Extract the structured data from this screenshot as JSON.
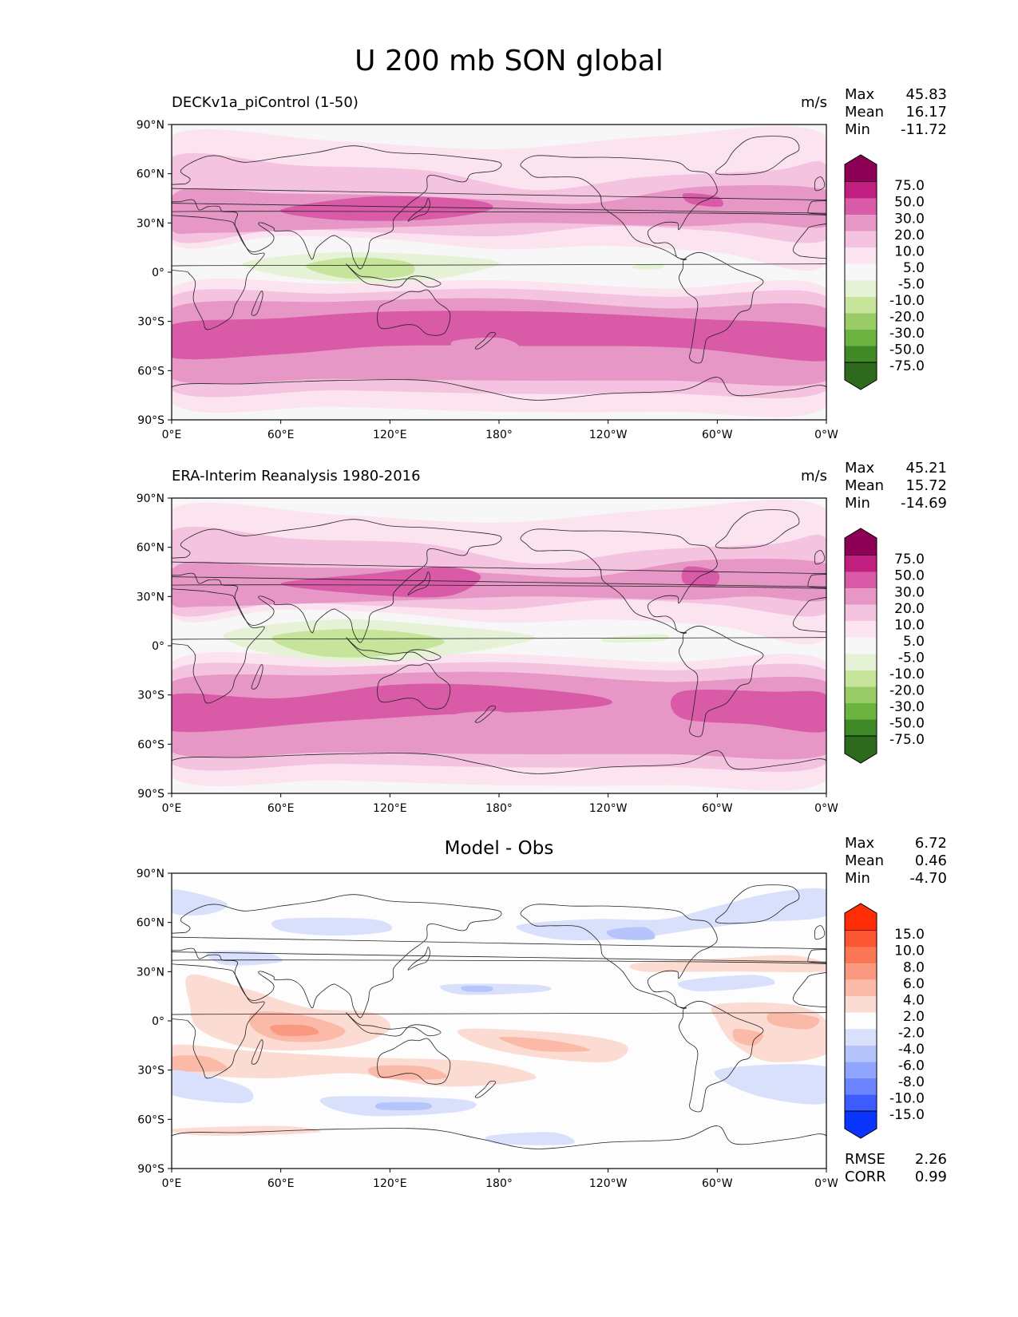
{
  "figure_title": "U 200 mb SON global",
  "axes": {
    "lat_ticks": [
      "90°N",
      "60°N",
      "30°N",
      "0°",
      "30°S",
      "60°S",
      "90°S"
    ],
    "lon_ticks": [
      "0°E",
      "60°E",
      "120°E",
      "180°",
      "120°W",
      "60°W",
      "0°W"
    ]
  },
  "colors": {
    "zonal_wind_levels": [
      "#2d6a1e",
      "#3f8a26",
      "#6db33f",
      "#99cc66",
      "#c6e59a",
      "#e6f2d6",
      "#f7f7f7",
      "#fbe3f0",
      "#f4c3df",
      "#e797c6",
      "#d95aa6",
      "#c01f80",
      "#8c0055"
    ],
    "difference_levels": [
      "#0a35ff",
      "#3c5cff",
      "#6a85ff",
      "#8fa5ff",
      "#b5c4fb",
      "#d8e0fb",
      "#fdfdfd",
      "#fcdcd2",
      "#fbb9a7",
      "#fa9980",
      "#fb7755",
      "#fb5532",
      "#ff2c06"
    ]
  },
  "chart_data": [
    {
      "type": "heatmap",
      "title": "DECKv1a_piControl (1-50)",
      "units": "m/s",
      "stats": {
        "max_label": "Max",
        "max": "45.83",
        "mean_label": "Mean",
        "mean": "16.17",
        "min_label": "Min",
        "min": "-11.72"
      },
      "colorbar_labels": [
        "75.0",
        "50.0",
        "30.0",
        "20.0",
        "10.0",
        "5.0",
        "-5.0",
        "-10.0",
        "-20.0",
        "-30.0",
        "-50.0",
        "-75.0"
      ],
      "lat_range": [
        -90,
        90
      ],
      "lon_range": [
        0,
        360
      ],
      "grid": false
    },
    {
      "type": "heatmap",
      "title": "ERA-Interim Reanalysis 1980-2016",
      "units": "m/s",
      "stats": {
        "max_label": "Max",
        "max": "45.21",
        "mean_label": "Mean",
        "mean": "15.72",
        "min_label": "Min",
        "min": "-14.69"
      },
      "colorbar_labels": [
        "75.0",
        "50.0",
        "30.0",
        "20.0",
        "10.0",
        "5.0",
        "-5.0",
        "-10.0",
        "-20.0",
        "-30.0",
        "-50.0",
        "-75.0"
      ],
      "lat_range": [
        -90,
        90
      ],
      "lon_range": [
        0,
        360
      ],
      "grid": false
    },
    {
      "type": "heatmap",
      "title": "Model - Obs",
      "units": "",
      "stats": {
        "max_label": "Max",
        "max": "6.72",
        "mean_label": "Mean",
        "mean": "0.46",
        "min_label": "Min",
        "min": "-4.70"
      },
      "colorbar_labels": [
        "15.0",
        "10.0",
        "8.0",
        "6.0",
        "4.0",
        "2.0",
        "-2.0",
        "-4.0",
        "-6.0",
        "-8.0",
        "-10.0",
        "-15.0"
      ],
      "metrics": {
        "rmse_label": "RMSE",
        "rmse": "2.26",
        "corr_label": "CORR",
        "corr": "0.99"
      },
      "lat_range": [
        -90,
        90
      ],
      "lon_range": [
        0,
        360
      ],
      "grid": false
    }
  ]
}
